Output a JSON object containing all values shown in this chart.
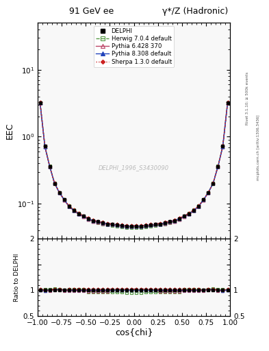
{
  "title_left": "91 GeV ee",
  "title_right": "γ*/Z (Hadronic)",
  "ylabel_main": "EEC",
  "ylabel_ratio": "Ratio to DELPHI",
  "xlabel": "cos{chi}",
  "watermark": "DELPHI_1996_S3430090",
  "right_label_top": "Rivet 3.1.10; ≥ 500k events",
  "right_label_bot": "mcplots.cern.ch [arXiv:1306.3436]",
  "ylim_main": [
    0.03,
    50.0
  ],
  "ylim_ratio": [
    0.5,
    2.0
  ],
  "xlim": [
    -1.0,
    1.0
  ],
  "cos_chi": [
    -0.975,
    -0.925,
    -0.875,
    -0.825,
    -0.775,
    -0.725,
    -0.675,
    -0.625,
    -0.575,
    -0.525,
    -0.475,
    -0.425,
    -0.375,
    -0.325,
    -0.275,
    -0.225,
    -0.175,
    -0.125,
    -0.075,
    -0.025,
    0.025,
    0.075,
    0.125,
    0.175,
    0.225,
    0.275,
    0.325,
    0.375,
    0.425,
    0.475,
    0.525,
    0.575,
    0.625,
    0.675,
    0.725,
    0.775,
    0.825,
    0.875,
    0.925,
    0.975
  ],
  "delphi": [
    3.2,
    0.72,
    0.36,
    0.2,
    0.145,
    0.115,
    0.092,
    0.08,
    0.071,
    0.065,
    0.06,
    0.056,
    0.054,
    0.052,
    0.05,
    0.049,
    0.048,
    0.047,
    0.046,
    0.046,
    0.046,
    0.046,
    0.047,
    0.048,
    0.049,
    0.05,
    0.052,
    0.054,
    0.056,
    0.06,
    0.065,
    0.071,
    0.08,
    0.092,
    0.115,
    0.145,
    0.2,
    0.36,
    0.72,
    3.2
  ],
  "herwig": [
    3.22,
    0.73,
    0.365,
    0.205,
    0.148,
    0.116,
    0.093,
    0.081,
    0.072,
    0.066,
    0.058,
    0.054,
    0.052,
    0.05,
    0.048,
    0.047,
    0.046,
    0.045,
    0.044,
    0.044,
    0.044,
    0.044,
    0.045,
    0.046,
    0.047,
    0.048,
    0.05,
    0.052,
    0.054,
    0.058,
    0.066,
    0.072,
    0.081,
    0.093,
    0.116,
    0.148,
    0.205,
    0.365,
    0.73,
    3.22
  ],
  "pythia6": [
    3.21,
    0.71,
    0.358,
    0.202,
    0.146,
    0.114,
    0.091,
    0.079,
    0.07,
    0.064,
    0.059,
    0.055,
    0.053,
    0.051,
    0.049,
    0.049,
    0.048,
    0.047,
    0.046,
    0.046,
    0.046,
    0.046,
    0.047,
    0.048,
    0.049,
    0.049,
    0.051,
    0.053,
    0.055,
    0.059,
    0.064,
    0.07,
    0.079,
    0.091,
    0.114,
    0.146,
    0.202,
    0.358,
    0.71,
    3.21
  ],
  "pythia8": [
    3.2,
    0.715,
    0.36,
    0.203,
    0.147,
    0.115,
    0.092,
    0.08,
    0.071,
    0.065,
    0.06,
    0.056,
    0.054,
    0.052,
    0.05,
    0.049,
    0.048,
    0.047,
    0.046,
    0.046,
    0.046,
    0.046,
    0.047,
    0.048,
    0.049,
    0.05,
    0.052,
    0.054,
    0.056,
    0.06,
    0.065,
    0.071,
    0.08,
    0.092,
    0.115,
    0.147,
    0.203,
    0.36,
    0.715,
    3.2
  ],
  "sherpa": [
    3.25,
    0.725,
    0.362,
    0.204,
    0.148,
    0.116,
    0.093,
    0.081,
    0.072,
    0.066,
    0.061,
    0.057,
    0.055,
    0.053,
    0.051,
    0.05,
    0.049,
    0.048,
    0.047,
    0.047,
    0.047,
    0.047,
    0.048,
    0.049,
    0.05,
    0.051,
    0.053,
    0.055,
    0.057,
    0.061,
    0.066,
    0.072,
    0.081,
    0.093,
    0.116,
    0.148,
    0.204,
    0.362,
    0.725,
    3.25
  ],
  "color_delphi": "#000000",
  "color_herwig": "#559944",
  "color_pythia6": "#bb4466",
  "color_pythia8": "#2244bb",
  "color_sherpa": "#cc2222",
  "legend_entries": [
    "DELPHI",
    "Herwig 7.0.4 default",
    "Pythia 6.428 370",
    "Pythia 8.308 default",
    "Sherpa 1.3.0 default"
  ],
  "background_color": "#ffffff",
  "panel_bg": "#f8f8f8"
}
